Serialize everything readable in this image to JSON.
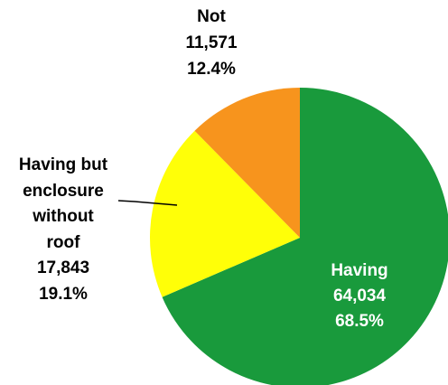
{
  "chart_data": {
    "type": "pie",
    "title": "",
    "slices": [
      {
        "label": "Having",
        "value": 64034,
        "value_text": "64,034",
        "percent": 68.5,
        "percent_text": "68.5%",
        "color": "#199a3c",
        "label_color": "#ffffff"
      },
      {
        "label": "Having but enclosure without roof",
        "label_lines": [
          "Having but",
          "enclosure",
          "without",
          "roof"
        ],
        "value": 17843,
        "value_text": "17,843",
        "percent": 19.1,
        "percent_text": "19.1%",
        "color": "#ffff08",
        "label_color": "#000000"
      },
      {
        "label": "Not",
        "value": 11571,
        "value_text": "11,571",
        "percent": 12.4,
        "percent_text": "12.4%",
        "color": "#f7941d",
        "label_color": "#000000"
      }
    ],
    "start_angle_deg": 0,
    "direction": "clockwise",
    "legend": "none",
    "leader_line": true
  }
}
